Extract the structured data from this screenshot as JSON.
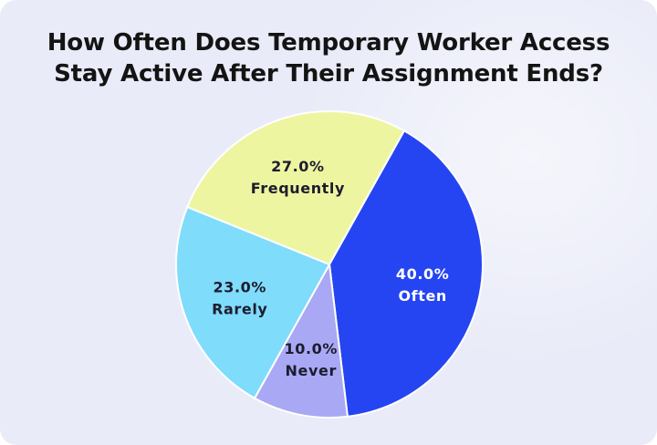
{
  "chart_data": {
    "type": "pie",
    "title": "How Often Does Temporary Worker Access Stay Active After Their Assignment Ends?",
    "title_lines": [
      "How Often Does Temporary Worker Access",
      "Stay Active After Their Assignment Ends?"
    ],
    "slices": [
      {
        "label": "Frequently",
        "value": 27.0,
        "value_text": "27.0%",
        "color": "#eef5a0",
        "text_color": "#1c1c2e"
      },
      {
        "label": "Often",
        "value": 40.0,
        "value_text": "40.0%",
        "color": "#2545f2",
        "text_color": "#ffffff"
      },
      {
        "label": "Never",
        "value": 10.0,
        "value_text": "10.0%",
        "color": "#a9a8f4",
        "text_color": "#1c1c2e"
      },
      {
        "label": "Rarely",
        "value": 23.0,
        "value_text": "23.0%",
        "color": "#7fdcfb",
        "text_color": "#1c1c2e"
      }
    ],
    "legend": "none",
    "background_color": "#e9ebf8"
  }
}
